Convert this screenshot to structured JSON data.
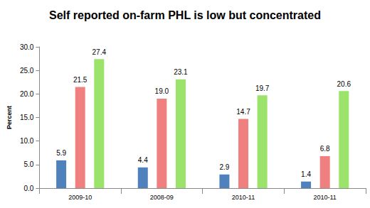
{
  "chart_data": {
    "type": "bar",
    "title": "Self reported on-farm PHL is low but concentrated",
    "y_label": "Percent",
    "categories": [
      "2009-10",
      "2008-09",
      "2010-11",
      "2010-11"
    ],
    "series": [
      {
        "color": "#4f81bd",
        "values": [
          5.9,
          4.4,
          2.9,
          1.4
        ]
      },
      {
        "color": "#f08080",
        "values": [
          21.5,
          19.0,
          14.7,
          6.8
        ],
        "value_labels": [
          "21.5",
          "19.0",
          "14.7",
          "6.8"
        ]
      },
      {
        "color": "#9be36a",
        "values": [
          27.4,
          23.1,
          19.7,
          20.6
        ]
      }
    ],
    "ylim": [
      0,
      30
    ],
    "yticks": [
      {
        "value": 0,
        "label": "0.0"
      },
      {
        "value": 5,
        "label": "5.0"
      },
      {
        "value": 10,
        "label": "10.0"
      },
      {
        "value": 15,
        "label": "15.0"
      },
      {
        "value": 20,
        "label": "20.0"
      },
      {
        "value": 25,
        "label": "25.0"
      },
      {
        "value": 30,
        "label": "30.0"
      }
    ],
    "grid": false,
    "data_labels": true
  }
}
